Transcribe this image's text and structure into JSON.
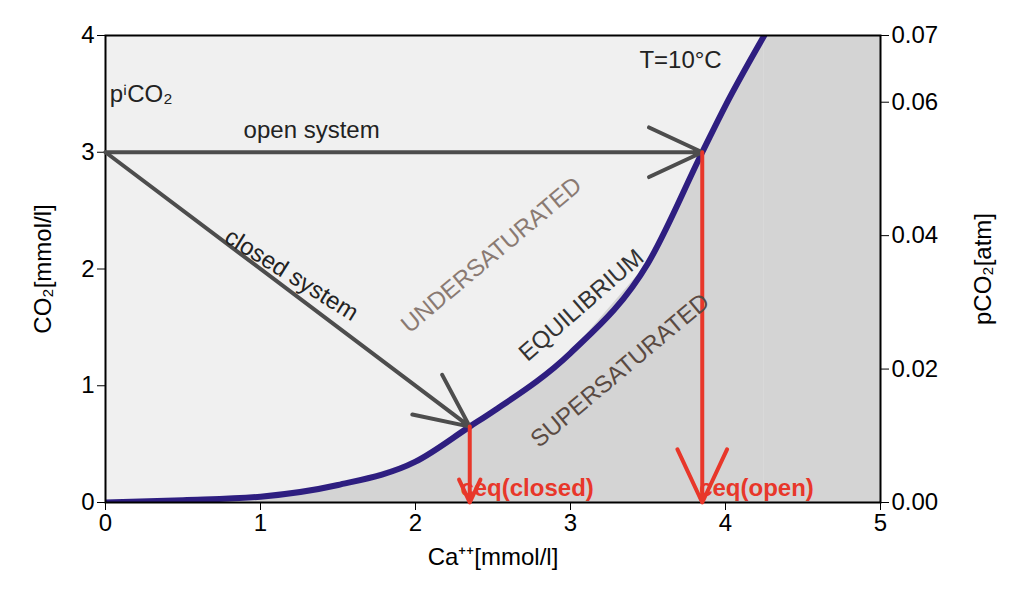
{
  "chart_data": {
    "type": "line",
    "x_label": "Ca⁺⁺[mmol/l]",
    "y_label": "CO₂[mmol/l]",
    "y2_label": "pCO₂[atm]",
    "xlim": [
      0,
      5
    ],
    "xticks": [
      0,
      1,
      2,
      3,
      4,
      5
    ],
    "ylim": [
      0,
      4
    ],
    "yticks": [
      0,
      1,
      2,
      3,
      4
    ],
    "y2lim": [
      0,
      0.07
    ],
    "y2ticks": [
      {
        "value": 0,
        "label": "0.00"
      },
      {
        "value": 0.02,
        "label": "0.02"
      },
      {
        "value": 0.04,
        "label": "0.04"
      },
      {
        "value": 0.06,
        "label": "0.06"
      },
      {
        "value": 0.07,
        "label": "0.07"
      }
    ],
    "x": [
      0,
      0.5,
      1,
      1.5,
      2,
      2.35,
      2.5,
      3,
      3.5,
      3.85,
      4,
      4.25
    ],
    "series": [
      {
        "name": "EQUILIBRIUM",
        "color": "#2e1e80",
        "values": [
          0,
          0.02,
          0.05,
          0.15,
          0.35,
          0.65,
          0.78,
          1.28,
          2.05,
          3.0,
          3.4,
          4.0
        ]
      }
    ],
    "annotations": [
      {
        "text": "open system",
        "x": 1.33,
        "y": 3.19,
        "color": "#222222"
      },
      {
        "text": "closed system",
        "x": 1.2,
        "y": 1.95,
        "color": "#222222"
      },
      {
        "text": "pⁱCO₂",
        "x": 0.23,
        "y": 3.5,
        "color": "#222222"
      },
      {
        "text": "T=10°C",
        "x": 3.71,
        "y": 3.79,
        "color": "#222222"
      },
      {
        "text": "UNDERSATURATED",
        "x": 2.49,
        "y": 2.12,
        "color": "#8a7a72"
      },
      {
        "text": "EQUILIBRIUM",
        "x": 3.07,
        "y": 1.69,
        "color": "#333333"
      },
      {
        "text": "SUPERSATURATED",
        "x": 3.32,
        "y": 1.13,
        "color": "#5a4a42"
      },
      {
        "text": "ceq(closed)",
        "x": 2.72,
        "y": 0.12,
        "color": "#e8372a"
      },
      {
        "text": "ceq(open)",
        "x": 4.2,
        "y": 0.12,
        "color": "#e8372a"
      }
    ],
    "arrows": [
      {
        "name": "open system",
        "x1": 0,
        "y1": 3,
        "x2": 3.85,
        "y2": 3,
        "color": "#4d4d4d"
      },
      {
        "name": "closed system",
        "x1": 0,
        "y1": 3,
        "x2": 2.35,
        "y2": 0.65,
        "color": "#4d4d4d"
      },
      {
        "name": "ceq(closed)",
        "x1": 2.35,
        "y1": 0.65,
        "x2": 2.35,
        "y2": 0,
        "color": "#e8372a"
      },
      {
        "name": "ceq(open)",
        "x1": 3.85,
        "y1": 3,
        "x2": 3.85,
        "y2": 0,
        "color": "#e8372a"
      }
    ]
  }
}
